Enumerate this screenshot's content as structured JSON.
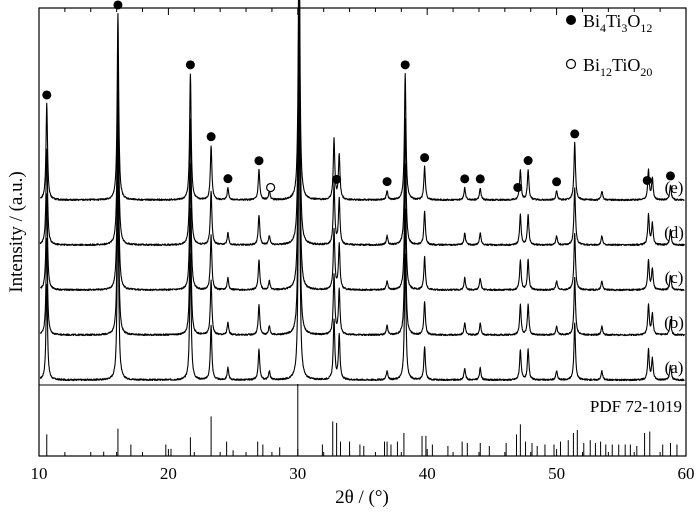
{
  "chart_data": {
    "type": "line",
    "xlabel": "2θ / (°)",
    "ylabel": "Intensity / (a.u.)",
    "xlim": [
      10,
      60
    ],
    "xticks": [
      "10",
      "20",
      "30",
      "40",
      "50",
      "60"
    ],
    "grid": false,
    "legend": {
      "placement": "top-right",
      "entries": [
        {
          "marker": "filled-circle",
          "base": "Bi",
          "s1": "4",
          "mid": "Ti",
          "s2": "3",
          "end": "O",
          "s3": "12"
        },
        {
          "marker": "open-circle",
          "base": "Bi",
          "s1": "12",
          "mid": "TiO",
          "s2": "",
          "end": "",
          "s3": "20"
        }
      ]
    },
    "series": [
      {
        "name": "(a)",
        "offset": 0
      },
      {
        "name": "(b)",
        "offset": 1
      },
      {
        "name": "(c)",
        "offset": 2
      },
      {
        "name": "(d)",
        "offset": 3
      },
      {
        "name": "(e)",
        "offset": 4
      }
    ],
    "peaks": [
      {
        "x": 10.6,
        "h": 0.32
      },
      {
        "x": 16.1,
        "h": 0.62
      },
      {
        "x": 21.7,
        "h": 0.42
      },
      {
        "x": 23.3,
        "h": 0.18
      },
      {
        "x": 24.6,
        "h": 0.04
      },
      {
        "x": 27.0,
        "h": 0.1
      },
      {
        "x": 27.8,
        "h": 0.03
      },
      {
        "x": 30.1,
        "h": 1.0
      },
      {
        "x": 32.8,
        "h": 0.2
      },
      {
        "x": 33.2,
        "h": 0.15
      },
      {
        "x": 36.9,
        "h": 0.03
      },
      {
        "x": 38.3,
        "h": 0.42
      },
      {
        "x": 39.8,
        "h": 0.11
      },
      {
        "x": 42.9,
        "h": 0.04
      },
      {
        "x": 44.1,
        "h": 0.04
      },
      {
        "x": 47.2,
        "h": 0.1
      },
      {
        "x": 47.8,
        "h": 0.1
      },
      {
        "x": 50.0,
        "h": 0.03
      },
      {
        "x": 51.4,
        "h": 0.19
      },
      {
        "x": 53.5,
        "h": 0.03
      },
      {
        "x": 57.1,
        "h": 0.1
      },
      {
        "x": 57.4,
        "h": 0.07
      },
      {
        "x": 58.8,
        "h": 0.05
      }
    ],
    "markers": [
      {
        "x": 10.6,
        "type": "filled"
      },
      {
        "x": 16.1,
        "type": "filled"
      },
      {
        "x": 21.7,
        "type": "filled"
      },
      {
        "x": 23.3,
        "type": "filled"
      },
      {
        "x": 24.6,
        "type": "filled"
      },
      {
        "x": 27.0,
        "type": "filled"
      },
      {
        "x": 27.9,
        "type": "open"
      },
      {
        "x": 30.1,
        "type": "filled"
      },
      {
        "x": 33.0,
        "type": "filled"
      },
      {
        "x": 36.9,
        "type": "filled"
      },
      {
        "x": 38.3,
        "type": "filled"
      },
      {
        "x": 39.8,
        "type": "filled"
      },
      {
        "x": 42.9,
        "type": "filled"
      },
      {
        "x": 44.1,
        "type": "filled"
      },
      {
        "x": 47.0,
        "type": "filled"
      },
      {
        "x": 47.8,
        "type": "filled"
      },
      {
        "x": 50.0,
        "type": "filled"
      },
      {
        "x": 51.4,
        "type": "filled"
      },
      {
        "x": 57.0,
        "type": "filled"
      },
      {
        "x": 58.8,
        "type": "filled"
      }
    ],
    "reference": {
      "name": "PDF 72-1019",
      "lines": [
        {
          "x": 10.6,
          "h": 0.3
        },
        {
          "x": 15.0,
          "h": 0.06
        },
        {
          "x": 16.1,
          "h": 0.38
        },
        {
          "x": 17.1,
          "h": 0.16
        },
        {
          "x": 19.8,
          "h": 0.16
        },
        {
          "x": 20.2,
          "h": 0.1
        },
        {
          "x": 21.7,
          "h": 0.26
        },
        {
          "x": 23.3,
          "h": 0.55
        },
        {
          "x": 24.5,
          "h": 0.2
        },
        {
          "x": 25.0,
          "h": 0.08
        },
        {
          "x": 26.9,
          "h": 0.2
        },
        {
          "x": 27.3,
          "h": 0.16
        },
        {
          "x": 28.6,
          "h": 0.12
        },
        {
          "x": 30.0,
          "h": 1.0
        },
        {
          "x": 31.9,
          "h": 0.16
        },
        {
          "x": 32.7,
          "h": 0.48
        },
        {
          "x": 33.0,
          "h": 0.46
        },
        {
          "x": 33.3,
          "h": 0.2
        },
        {
          "x": 34.0,
          "h": 0.2
        },
        {
          "x": 34.8,
          "h": 0.16
        },
        {
          "x": 35.1,
          "h": 0.14
        },
        {
          "x": 36.7,
          "h": 0.2
        },
        {
          "x": 36.9,
          "h": 0.2
        },
        {
          "x": 37.2,
          "h": 0.16
        },
        {
          "x": 37.7,
          "h": 0.2
        },
        {
          "x": 38.2,
          "h": 0.32
        },
        {
          "x": 39.6,
          "h": 0.28
        },
        {
          "x": 39.9,
          "h": 0.28
        },
        {
          "x": 40.4,
          "h": 0.16
        },
        {
          "x": 41.6,
          "h": 0.14
        },
        {
          "x": 42.7,
          "h": 0.2
        },
        {
          "x": 43.1,
          "h": 0.18
        },
        {
          "x": 44.1,
          "h": 0.18
        },
        {
          "x": 44.8,
          "h": 0.14
        },
        {
          "x": 46.1,
          "h": 0.18
        },
        {
          "x": 46.9,
          "h": 0.3
        },
        {
          "x": 47.2,
          "h": 0.44
        },
        {
          "x": 47.6,
          "h": 0.2
        },
        {
          "x": 48.1,
          "h": 0.18
        },
        {
          "x": 48.5,
          "h": 0.14
        },
        {
          "x": 49.1,
          "h": 0.16
        },
        {
          "x": 49.8,
          "h": 0.16
        },
        {
          "x": 50.3,
          "h": 0.2
        },
        {
          "x": 50.9,
          "h": 0.22
        },
        {
          "x": 51.3,
          "h": 0.32
        },
        {
          "x": 51.6,
          "h": 0.36
        },
        {
          "x": 52.1,
          "h": 0.18
        },
        {
          "x": 52.6,
          "h": 0.22
        },
        {
          "x": 53.0,
          "h": 0.18
        },
        {
          "x": 53.4,
          "h": 0.2
        },
        {
          "x": 53.8,
          "h": 0.16
        },
        {
          "x": 54.3,
          "h": 0.16
        },
        {
          "x": 54.8,
          "h": 0.16
        },
        {
          "x": 55.3,
          "h": 0.16
        },
        {
          "x": 55.7,
          "h": 0.16
        },
        {
          "x": 56.2,
          "h": 0.14
        },
        {
          "x": 56.8,
          "h": 0.32
        },
        {
          "x": 57.2,
          "h": 0.34
        },
        {
          "x": 58.2,
          "h": 0.16
        },
        {
          "x": 58.8,
          "h": 0.18
        },
        {
          "x": 59.3,
          "h": 0.16
        }
      ]
    }
  }
}
